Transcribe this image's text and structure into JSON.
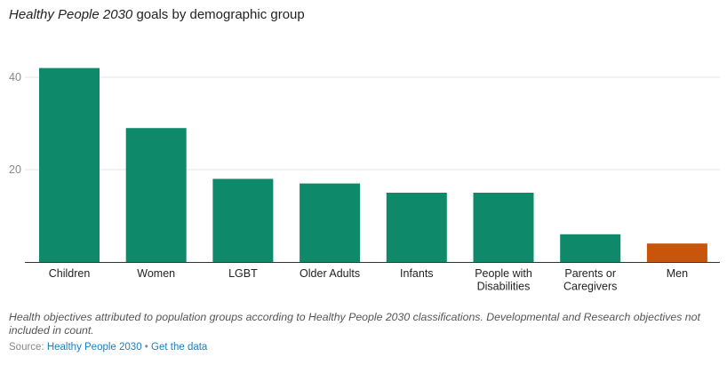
{
  "header": {
    "title_italic": "Healthy People 2030",
    "title_rest": " goals by demographic group"
  },
  "chart_data": {
    "type": "bar",
    "title": "Healthy People 2030 goals by demographic group",
    "categories": [
      [
        "Children"
      ],
      [
        "Women"
      ],
      [
        "LGBT"
      ],
      [
        "Older Adults"
      ],
      [
        "Infants"
      ],
      [
        "People with",
        "Disabilities"
      ],
      [
        "Parents or",
        "Caregivers"
      ],
      [
        "Men"
      ]
    ],
    "values": [
      42,
      29,
      18,
      17,
      15,
      15,
      6,
      4
    ],
    "colors": [
      "#0e8a6b",
      "#0e8a6b",
      "#0e8a6b",
      "#0e8a6b",
      "#0e8a6b",
      "#0e8a6b",
      "#0e8a6b",
      "#c9550a"
    ],
    "yticks": [
      20,
      40
    ],
    "ylim": [
      0,
      46
    ],
    "grid": true,
    "xlabel": "",
    "ylabel": ""
  },
  "footer": {
    "note": "Health objectives attributed to population groups according to Healthy People 2030 classifications. Developmental and Research objectives not included in count.",
    "source_prefix": "Source: ",
    "source_link": "Healthy People 2030",
    "separator": " • ",
    "data_link": "Get the data"
  }
}
